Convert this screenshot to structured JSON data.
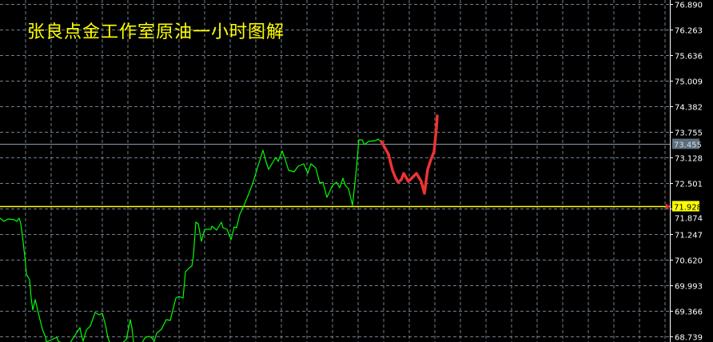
{
  "title": "张良点金工作室原油一小时图解",
  "colors": {
    "background": "#000000",
    "grid": "#6f7f8f",
    "price_line": "#00ff00",
    "projection": "#ee3333",
    "current_price_line": "#8a9aa8",
    "level_line": "#ffff00",
    "axis": "#ffffff"
  },
  "chart_data": {
    "type": "line",
    "title": "张良点金工作室原油一小时图解",
    "xlabel": "",
    "ylabel": "",
    "ylim": [
      68.602,
      76.89
    ],
    "grid": true,
    "y_ticks": [
      "76.890",
      "76.263",
      "75.636",
      "75.009",
      "74.382",
      "73.755",
      "73.128",
      "72.501",
      "71.874",
      "71.247",
      "70.620",
      "69.993",
      "69.366",
      "68.739"
    ],
    "y_tick_values": [
      76.89,
      76.263,
      75.636,
      75.009,
      74.382,
      73.755,
      73.128,
      72.501,
      71.874,
      71.247,
      70.62,
      69.993,
      69.366,
      68.739
    ],
    "current_price": {
      "label": "73.455",
      "value": 73.455
    },
    "level": {
      "label": "71.928",
      "value": 71.928
    },
    "series": [
      {
        "style": "price",
        "x": [
          0,
          5,
          10,
          18,
          21,
          24,
          26,
          29,
          32,
          33,
          37,
          39,
          41,
          44,
          50,
          53,
          57,
          58,
          65,
          71,
          73,
          85,
          100,
          102,
          104,
          108,
          113,
          119,
          124,
          128,
          132,
          135,
          137,
          148,
          158,
          163,
          165,
          167,
          175,
          182,
          187,
          190,
          193,
          196,
          202,
          208,
          213,
          220,
          224,
          229,
          232,
          237,
          240,
          242,
          245,
          248,
          252,
          256,
          264,
          265,
          271,
          277,
          279,
          284,
          289,
          293,
          296,
          300,
          304,
          311,
          316,
          323,
          329,
          333,
          336,
          345,
          348,
          353,
          357,
          361,
          368,
          373,
          380,
          385,
          389,
          395,
          400,
          404,
          409,
          416,
          421,
          425,
          429,
          432,
          436,
          441,
          445,
          449,
          453,
          456,
          461,
          470,
          473,
          477
        ],
        "y": [
          71.639,
          71.56,
          71.619,
          71.6,
          71.56,
          71.639,
          71.502,
          71.051,
          70.522,
          70.267,
          70.13,
          69.679,
          69.385,
          69.64,
          69.15,
          68.915,
          68.719,
          68.602,
          68.661,
          68.719,
          68.621,
          68.5,
          68.954,
          68.758,
          68.621,
          68.896,
          68.994,
          69.327,
          69.268,
          69.307,
          69.013,
          68.7,
          68.602,
          68.5,
          68.661,
          69.15,
          68.954,
          68.602,
          68.5,
          68.719,
          68.739,
          68.7,
          68.621,
          68.817,
          68.915,
          69.15,
          69.131,
          69.679,
          69.719,
          69.679,
          70.326,
          70.424,
          70.463,
          70.718,
          71.541,
          71.502,
          71.071,
          71.364,
          71.364,
          71.443,
          71.345,
          71.541,
          71.404,
          71.364,
          71.11,
          71.423,
          71.404,
          71.737,
          71.894,
          72.227,
          72.481,
          72.932,
          73.304,
          73.01,
          72.834,
          73.128,
          73.03,
          73.285,
          73.069,
          72.814,
          72.775,
          72.912,
          72.971,
          72.736,
          72.971,
          72.873,
          72.501,
          72.521,
          72.148,
          72.442,
          72.521,
          72.383,
          72.619,
          72.442,
          72.364,
          71.952,
          72.677,
          73.559,
          73.559,
          73.441,
          73.52,
          73.539,
          73.579,
          73.5
        ]
      },
      {
        "style": "projection",
        "x": [
          477,
          486,
          491,
          495,
          498,
          502,
          505,
          511,
          521,
          527,
          531,
          535,
          539,
          543,
          546,
          547
        ],
        "y": [
          73.52,
          73.206,
          72.814,
          72.619,
          72.521,
          72.579,
          72.736,
          72.54,
          72.736,
          72.54,
          72.246,
          72.834,
          73.069,
          73.265,
          73.853,
          74.147
        ]
      }
    ]
  }
}
